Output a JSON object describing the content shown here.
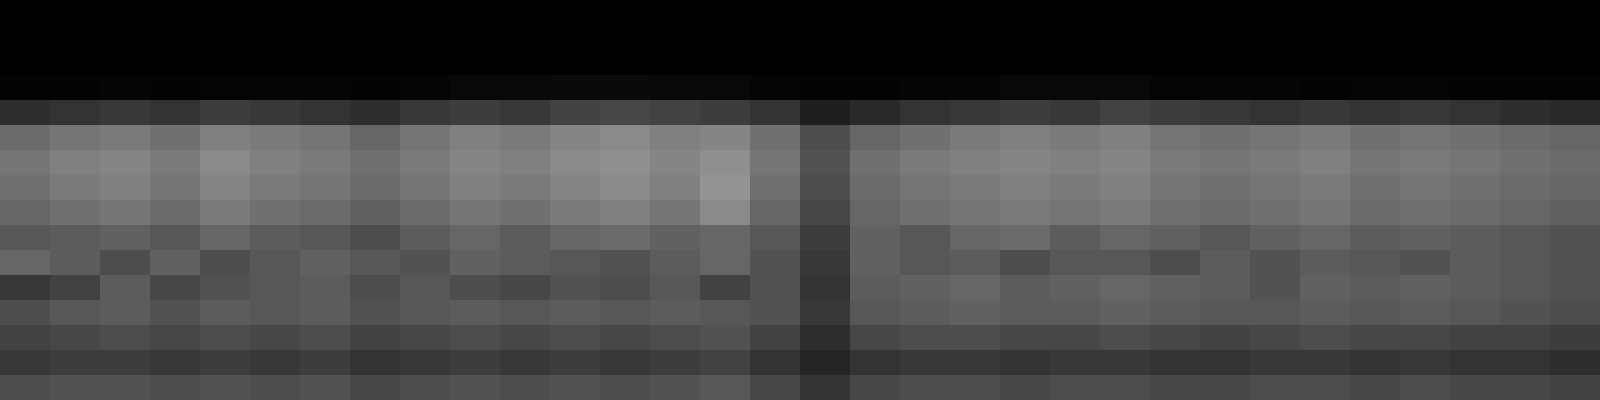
{
  "chart_data": {
    "type": "heatmap",
    "tick_labels": false,
    "zlim": [
      0,
      100
    ],
    "cells": [
      [
        0,
        0,
        0,
        0,
        0,
        0,
        0,
        0,
        0,
        0,
        0,
        0,
        0,
        0,
        0,
        0,
        0,
        0,
        0,
        0,
        0,
        0,
        0,
        0,
        0,
        0,
        0,
        0,
        0,
        0,
        0,
        0
      ],
      [
        0,
        0,
        0,
        0,
        0,
        0,
        0,
        0,
        0,
        0,
        0,
        0,
        0,
        0,
        0,
        0,
        0,
        0,
        0,
        0,
        0,
        0,
        0,
        0,
        0,
        0,
        0,
        0,
        0,
        0,
        0,
        0
      ],
      [
        0,
        0,
        0,
        0,
        0,
        0,
        0,
        0,
        0,
        0,
        0,
        0,
        0,
        0,
        0,
        0,
        0,
        0,
        0,
        0,
        0,
        0,
        0,
        0,
        0,
        0,
        0,
        0,
        0,
        0,
        0,
        0
      ],
      [
        1,
        1,
        2,
        1,
        2,
        2,
        2,
        1,
        2,
        3,
        3,
        4,
        4,
        3,
        3,
        2,
        1,
        1,
        2,
        2,
        3,
        3,
        3,
        2,
        2,
        2,
        1,
        2,
        2,
        1,
        1,
        1
      ],
      [
        18,
        20,
        22,
        20,
        24,
        22,
        20,
        18,
        22,
        24,
        22,
        26,
        28,
        26,
        24,
        20,
        12,
        16,
        20,
        22,
        24,
        22,
        26,
        24,
        22,
        20,
        22,
        20,
        22,
        20,
        18,
        16
      ],
      [
        42,
        46,
        48,
        44,
        50,
        48,
        46,
        40,
        46,
        50,
        48,
        52,
        54,
        50,
        52,
        44,
        30,
        40,
        44,
        48,
        50,
        48,
        50,
        46,
        44,
        46,
        48,
        44,
        46,
        44,
        42,
        40
      ],
      [
        46,
        50,
        52,
        48,
        54,
        50,
        48,
        44,
        48,
        52,
        50,
        54,
        56,
        52,
        56,
        46,
        32,
        44,
        48,
        50,
        52,
        50,
        52,
        48,
        46,
        48,
        50,
        46,
        48,
        46,
        44,
        42
      ],
      [
        44,
        48,
        50,
        46,
        52,
        48,
        46,
        42,
        46,
        50,
        48,
        52,
        54,
        50,
        58,
        44,
        30,
        42,
        46,
        48,
        50,
        48,
        50,
        46,
        44,
        46,
        48,
        44,
        46,
        44,
        42,
        40
      ],
      [
        40,
        44,
        46,
        42,
        48,
        44,
        42,
        38,
        42,
        46,
        44,
        48,
        50,
        46,
        54,
        40,
        28,
        40,
        44,
        46,
        48,
        46,
        48,
        44,
        42,
        44,
        46,
        42,
        44,
        42,
        40,
        38
      ],
      [
        34,
        36,
        38,
        34,
        40,
        36,
        34,
        30,
        36,
        40,
        36,
        40,
        42,
        38,
        40,
        34,
        24,
        38,
        34,
        40,
        42,
        36,
        40,
        38,
        34,
        38,
        40,
        36,
        38,
        36,
        34,
        32
      ],
      [
        40,
        36,
        30,
        38,
        30,
        34,
        38,
        34,
        32,
        38,
        36,
        34,
        32,
        36,
        40,
        32,
        22,
        38,
        34,
        36,
        30,
        34,
        34,
        30,
        36,
        32,
        36,
        34,
        32,
        36,
        34,
        32
      ],
      [
        22,
        26,
        36,
        28,
        32,
        34,
        36,
        30,
        34,
        30,
        28,
        32,
        30,
        34,
        26,
        32,
        20,
        36,
        38,
        40,
        36,
        38,
        40,
        38,
        36,
        32,
        38,
        36,
        38,
        36,
        34,
        32
      ],
      [
        30,
        34,
        36,
        32,
        36,
        34,
        36,
        32,
        34,
        36,
        34,
        36,
        34,
        36,
        34,
        32,
        22,
        34,
        36,
        38,
        36,
        36,
        38,
        36,
        34,
        34,
        36,
        34,
        36,
        34,
        32,
        30
      ],
      [
        26,
        28,
        30,
        28,
        30,
        28,
        30,
        26,
        28,
        30,
        28,
        30,
        28,
        30,
        32,
        26,
        18,
        28,
        30,
        30,
        28,
        28,
        30,
        28,
        26,
        28,
        30,
        28,
        28,
        26,
        26,
        24
      ],
      [
        22,
        24,
        24,
        22,
        24,
        22,
        24,
        20,
        22,
        24,
        22,
        24,
        22,
        24,
        26,
        20,
        14,
        20,
        22,
        22,
        20,
        22,
        22,
        20,
        20,
        22,
        22,
        20,
        22,
        20,
        20,
        18
      ],
      [
        30,
        32,
        32,
        30,
        32,
        30,
        32,
        28,
        30,
        32,
        30,
        32,
        30,
        32,
        34,
        28,
        20,
        28,
        30,
        30,
        28,
        30,
        30,
        28,
        28,
        30,
        30,
        28,
        30,
        28,
        28,
        26
      ]
    ]
  }
}
